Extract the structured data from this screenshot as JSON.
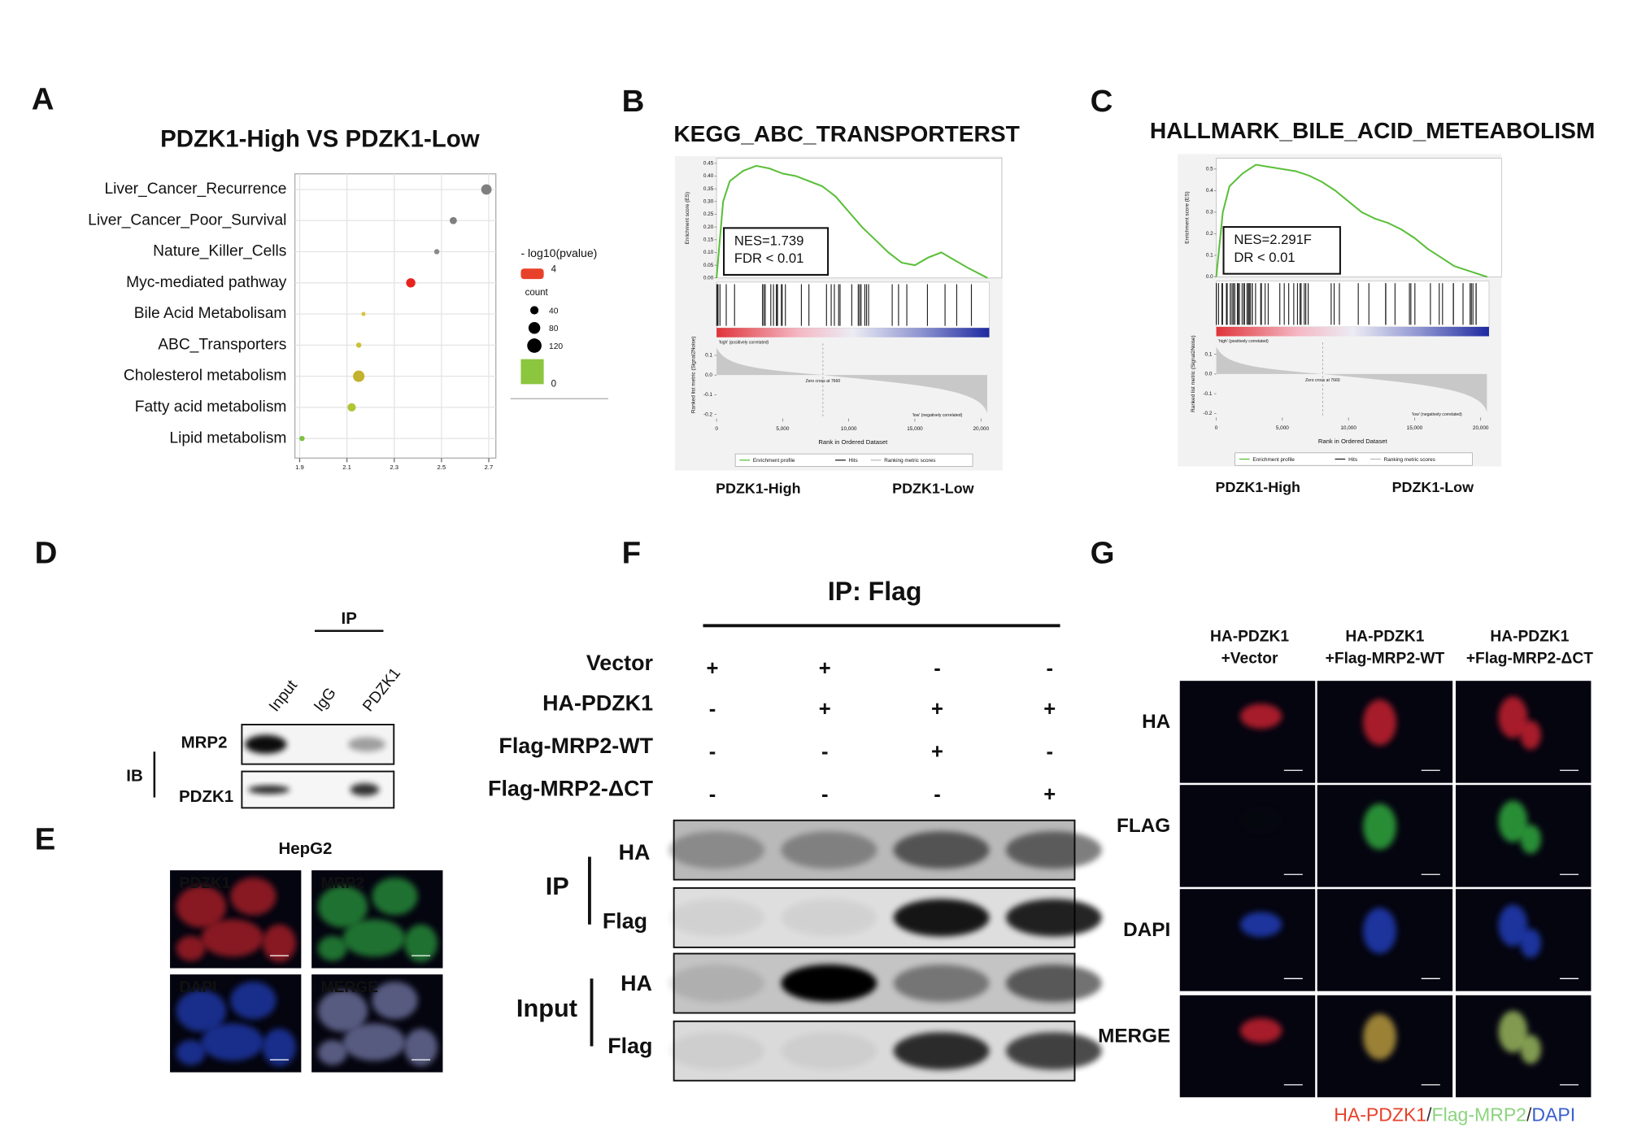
{
  "panel_letters": [
    "A",
    "B",
    "C",
    "D",
    "E",
    "F",
    "G"
  ],
  "chart_data": [
    {
      "type": "dot",
      "title": "PDZK1-High VS PDZK1-Low",
      "categories": [
        "Liver_Cancer_Recurrence",
        "Liver_Cancer_Poor_Survival",
        "Nature_Killer_Cells",
        "Myc-mediated pathway",
        "Bile Acid Metabolisam",
        "ABC_Transporters",
        "Cholesterol metabolism",
        "Fatty acid metabolism",
        "Lipid metabolism"
      ],
      "label_colors": [
        "#4a6fb5",
        "#4a6fb5",
        "#222222",
        "#222222",
        "#e03a2c",
        "#e03a2c",
        "#222222",
        "#222222",
        "#222222"
      ],
      "values": [
        2.69,
        2.55,
        2.48,
        2.37,
        2.17,
        2.15,
        2.15,
        2.12,
        1.91
      ],
      "counts": [
        63,
        30,
        16,
        50,
        10,
        16,
        76,
        40,
        16
      ],
      "colors": [
        "#7f7f7f",
        "#7f7f7f",
        "#8a8a8a",
        "#e8231f",
        "#d9c43a",
        "#c9c23a",
        "#c2b22c",
        "#b2c434",
        "#7cc242"
      ],
      "xlim": [
        1.88,
        2.73
      ],
      "xticks": [
        1.9,
        2.1,
        2.3,
        2.5,
        2.7
      ],
      "grid": true,
      "color_legend": {
        "title": "- log10(pvalue)",
        "values": [
          4,
          0
        ],
        "colors": [
          "#e8412a",
          "#8cc63f"
        ]
      },
      "size_legend": {
        "title": "count",
        "values": [
          40,
          80,
          120
        ]
      }
    },
    {
      "type": "gsea",
      "title": "KEGG_ABC_TRANSPORTERST",
      "ylabel": "Enrichment score (ES)",
      "ylim": [
        0,
        0.47
      ],
      "yticks": [
        {
          "value": 0,
          "label": "0.00"
        },
        0.05,
        {
          "value": 0.1,
          "label": "0.10"
        },
        0.15,
        {
          "value": 0.2,
          "label": "0.20"
        },
        0.25,
        {
          "value": 0.3,
          "label": "0.30"
        },
        0.35,
        {
          "value": 0.4,
          "label": "0.40"
        },
        0.45
      ],
      "x": [
        0,
        500,
        1000,
        2000,
        3000,
        4000,
        5000,
        6000,
        7000,
        8000,
        9000,
        10000,
        11000,
        12000,
        13000,
        14000,
        15000,
        16000,
        17000,
        18000,
        19000,
        20500
      ],
      "es": [
        0,
        0.3,
        0.38,
        0.42,
        0.44,
        0.43,
        0.41,
        0.4,
        0.38,
        0.36,
        0.32,
        0.26,
        0.2,
        0.15,
        0.1,
        0.06,
        0.05,
        0.08,
        0.1,
        0.07,
        0.04,
        0
      ],
      "xlim": [
        0,
        20630
      ],
      "xticks": [
        0,
        {
          "value": 5000,
          "label": "5,000"
        },
        {
          "value": 10000,
          "label": "10,000"
        },
        {
          "value": 15000,
          "label": "15,000"
        },
        {
          "value": 20000,
          "label": "20,000"
        }
      ],
      "stats": [
        "NES=1.739",
        "FDR < 0.01"
      ],
      "metric_label": "Ranked list metric (Signal2Noise)",
      "metric_ylim": [
        -0.21,
        0.16
      ],
      "metric_yticks": [
        0.1,
        {
          "value": 0,
          "label": "0.0"
        },
        -0.1,
        -0.2
      ],
      "xlabel": "Rank in Ordered Dataset",
      "high_label": "'high' (positively correlated)",
      "low_label": "'low' (negatively correlated)",
      "zero_cross": "Zero cross at 7660",
      "legend": [
        "Enrichment profile",
        "Hits",
        "Ranking metric scores"
      ],
      "groups": [
        "PDZK1-High",
        "PDZK1-Low"
      ]
    },
    {
      "type": "gsea",
      "title": "HALLMARK_BILE_ACID_METEABOLISM",
      "ylabel": "Enrichment score (ES)",
      "ylim": [
        0,
        0.55
      ],
      "yticks": [
        {
          "value": 0,
          "label": "0.0"
        },
        0.1,
        0.2,
        0.3,
        0.4,
        0.5
      ],
      "x": [
        0,
        500,
        1000,
        2000,
        3000,
        4000,
        5000,
        6000,
        7000,
        8000,
        9000,
        10000,
        11000,
        12000,
        13000,
        14000,
        15000,
        16000,
        17000,
        18000,
        19000,
        20500
      ],
      "es": [
        0,
        0.3,
        0.42,
        0.48,
        0.52,
        0.51,
        0.5,
        0.49,
        0.47,
        0.44,
        0.4,
        0.35,
        0.3,
        0.27,
        0.25,
        0.22,
        0.18,
        0.13,
        0.09,
        0.05,
        0.03,
        0
      ],
      "xlim": [
        0,
        20630
      ],
      "xticks": [
        0,
        {
          "value": 5000,
          "label": "5,000"
        },
        {
          "value": 10000,
          "label": "10,000"
        },
        {
          "value": 15000,
          "label": "15,000"
        },
        {
          "value": 20000,
          "label": "20,000"
        }
      ],
      "stats": [
        "NES=2.291F",
        "DR < 0.01"
      ],
      "metric_label": "Ranked list metric (Signal2Noise)",
      "metric_ylim": [
        -0.21,
        0.16
      ],
      "metric_yticks": [
        0.1,
        {
          "value": 0,
          "label": "0.0"
        },
        -0.1,
        -0.2
      ],
      "xlabel": "Rank in Ordered Dataset",
      "high_label": "'high' (positively correlated)",
      "low_label": "'low' (negatively correlated)",
      "zero_cross": "Zero cross at 7660",
      "legend": [
        "Enrichment profile",
        "Hits",
        "Ranking metric scores"
      ],
      "groups": [
        "PDZK1-High",
        "PDZK1-Low"
      ]
    }
  ],
  "panel_d": {
    "ip_label": "IP",
    "columns": [
      "Input",
      "IgG",
      "PDZK1"
    ],
    "ib_label": "IB",
    "rows": [
      "MRP2",
      "PDZK1"
    ]
  },
  "panel_e": {
    "title": "HepG2",
    "tiles": [
      "PDZK1",
      "MRP2",
      "DAPI",
      "MERGE"
    ]
  },
  "panel_f": {
    "title": "IP:  Flag",
    "conditions": [
      {
        "label": "Vector",
        "signs": [
          "+",
          "+",
          "-",
          "-"
        ]
      },
      {
        "label": "HA-PDZK1",
        "signs": [
          "-",
          "+",
          "+",
          "+"
        ]
      },
      {
        "label": "Flag-MRP2-WT",
        "signs": [
          "-",
          "-",
          "+",
          "-"
        ]
      },
      {
        "label": "Flag-MRP2-ΔCT",
        "signs": [
          "-",
          "-",
          "-",
          "+"
        ]
      }
    ],
    "groups": [
      {
        "label": "IP",
        "blots": [
          "HA",
          "Flag"
        ]
      },
      {
        "label": "Input",
        "blots": [
          "HA",
          "Flag"
        ]
      }
    ]
  },
  "panel_g": {
    "columns": [
      [
        "HA-PDZK1",
        "+Vector"
      ],
      [
        "HA-PDZK1",
        "+Flag-MRP2-WT"
      ],
      [
        "HA-PDZK1",
        "+Flag-MRP2-ΔCT"
      ]
    ],
    "rows": [
      "HA",
      "FLAG",
      "DAPI",
      "MERGE"
    ],
    "legend": [
      "HA-PDZK1",
      "/",
      "Flag-MRP2",
      "/",
      "DAPI"
    ],
    "legend_colors": [
      "#e8412a",
      "#333333",
      "#8cd47e",
      "#333333",
      "#3a5fd0"
    ]
  }
}
